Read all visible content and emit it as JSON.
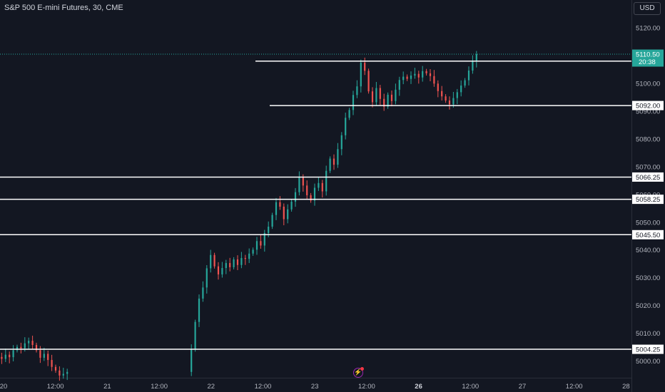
{
  "header": {
    "title": "S&P 500 E-mini Futures, 30, CME",
    "currency_button": "USD"
  },
  "colors": {
    "background": "#131722",
    "up": "#26a69a",
    "down": "#ef5350",
    "level_line": "#ffffff",
    "current_price": "#26a69a"
  },
  "chart_data": {
    "type": "candlestick",
    "ylim": [
      4994,
      5130
    ],
    "y_ticks": [
      5000,
      5010,
      5020,
      5030,
      5040,
      5050,
      5060,
      5070,
      5080,
      5090,
      5100,
      5120
    ],
    "y_tick_labels": [
      "5000.00",
      "5010.00",
      "5020.00",
      "5030.00",
      "5040.00",
      "5050.00",
      "5060.00",
      "5070.00",
      "5080.00",
      "5090.00",
      "5100.00",
      "5120.00"
    ],
    "x_ticks": [
      {
        "label": "20",
        "bold": false
      },
      {
        "label": "12:00",
        "bold": false
      },
      {
        "label": "21",
        "bold": false
      },
      {
        "label": "12:00",
        "bold": false
      },
      {
        "label": "22",
        "bold": false
      },
      {
        "label": "12:00",
        "bold": false
      },
      {
        "label": "23",
        "bold": false
      },
      {
        "label": "12:00",
        "bold": false
      },
      {
        "label": "26",
        "bold": true
      },
      {
        "label": "12:00",
        "bold": false
      },
      {
        "label": "27",
        "bold": false
      },
      {
        "label": "12:00",
        "bold": false
      },
      {
        "label": "28",
        "bold": false
      }
    ],
    "current_price": {
      "value": 5110.5,
      "label": "5110.50",
      "countdown": "20:38"
    },
    "levels": [
      {
        "value": 5108.0,
        "label": "5108.00"
      },
      {
        "value": 5092.0,
        "label": "5092.00"
      },
      {
        "value": 5066.25,
        "label": "5066.25"
      },
      {
        "value": 5058.25,
        "label": "5058.25"
      },
      {
        "value": 5045.5,
        "label": "5045.50"
      },
      {
        "value": 5004.25,
        "label": "5004.25"
      }
    ],
    "closes": [
      5001.5,
      5000.8,
      5002.3,
      5001.4,
      5003.9,
      5005.1,
      5004.6,
      5006.4,
      5007.3,
      5005.8,
      5003.9,
      5001.2,
      5002.6,
      5000.4,
      4997.9,
      4996.6,
      4994.8,
      4995.4,
      4996.1,
      5004.2,
      5014.1,
      5022.5,
      5026.5,
      5033.4,
      5038.2,
      5034.1,
      5031.2,
      5033.5,
      5035.3,
      5033.8,
      5036.6,
      5034.6,
      5037.1,
      5036.8,
      5038.7,
      5040.1,
      5043.2,
      5041.6,
      5046.1,
      5048.4,
      5052.6,
      5057.2,
      5055.6,
      5051.1,
      5054.6,
      5057.4,
      5060.8,
      5066.1,
      5063.2,
      5059.7,
      5057.8,
      5062.4,
      5064.1,
      5061.1,
      5068.5,
      5072.9,
      5070.7,
      5076.3,
      5081.3,
      5087.6,
      5090.4,
      5095.8,
      5098.9,
      5107.4,
      5104.5,
      5097.1,
      5093.2,
      5098.3,
      5094.4,
      5091.6,
      5095.9,
      5093.6,
      5097.7,
      5101.2,
      5102.4,
      5101.6,
      5102.8,
      5103.4,
      5102.1,
      5104.4,
      5103.6,
      5102.6,
      5099.9,
      5097.2,
      5095.3,
      5093.8,
      5092.4,
      5094.7,
      5096.8,
      5099.2,
      5101.1,
      5104.6,
      5107.9,
      5110.5
    ],
    "gap_after_index": 18
  }
}
